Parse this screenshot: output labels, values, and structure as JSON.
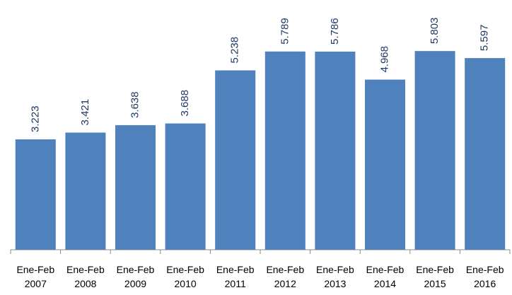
{
  "chart_data": {
    "type": "bar",
    "categories": [
      "Ene-Feb 2007",
      "Ene-Feb 2008",
      "Ene-Feb 2009",
      "Ene-Feb 2010",
      "Ene-Feb 2011",
      "Ene-Feb 2012",
      "Ene-Feb 2013",
      "Ene-Feb 2014",
      "Ene-Feb 2015",
      "Ene-Feb 2016"
    ],
    "values": [
      3.223,
      3.421,
      3.638,
      3.688,
      5.238,
      5.789,
      5.786,
      4.968,
      5.803,
      5.597
    ],
    "color": "#4f81bd"
  }
}
